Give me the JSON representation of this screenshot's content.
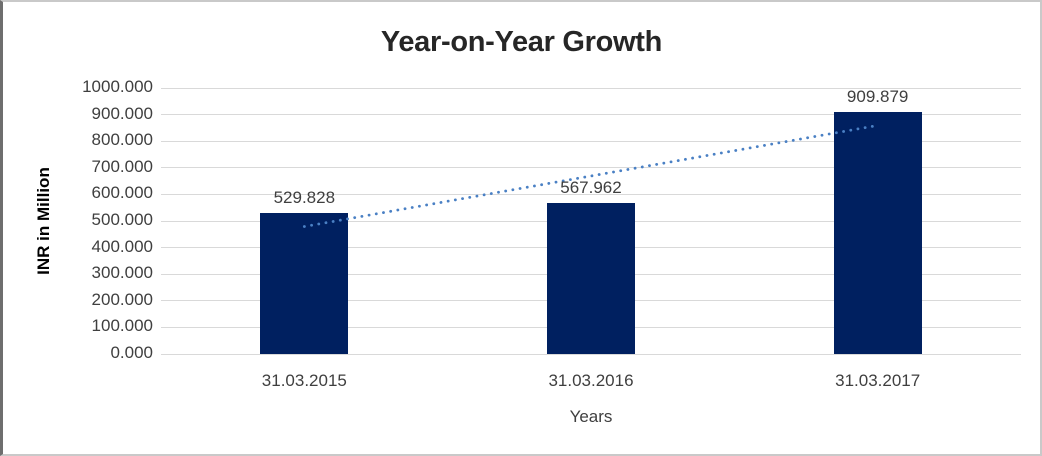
{
  "chart_data": {
    "type": "bar",
    "title": "Year-on-Year Growth",
    "ylabel": "INR in Million",
    "xlabel": "Years",
    "categories": [
      "31.03.2015",
      "31.03.2016",
      "31.03.2017"
    ],
    "values": [
      529.828,
      567.962,
      909.879
    ],
    "data_labels": [
      "529.828",
      "567.962",
      "909.879"
    ],
    "ylim": [
      0,
      1000
    ],
    "ytick_step": 100,
    "ytick_labels": [
      "0.000",
      "100.000",
      "200.000",
      "300.000",
      "400.000",
      "500.000",
      "600.000",
      "700.000",
      "800.000",
      "900.000",
      "1000.000"
    ],
    "grid": true,
    "legend": "none",
    "bar_color": "#002060",
    "gridline_color": "#d9d9d9",
    "text_color": "#3f3f3f",
    "trendline": {
      "type": "linear",
      "style": "dotted",
      "color": "#4a80c4"
    }
  }
}
